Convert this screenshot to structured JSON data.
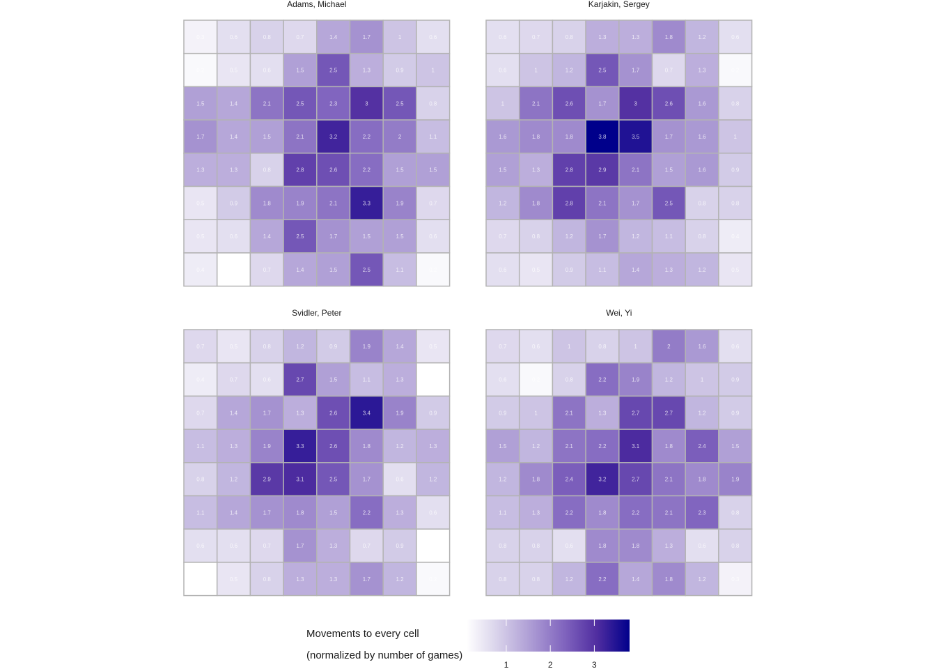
{
  "chart_data": {
    "type": "heatmap",
    "color_low": "#ffffff",
    "color_high": "#00008b",
    "cell_border": "#b3b3b3",
    "legend": {
      "title_line1": "Movements to every cell",
      "title_line2": "(normalized by number of games)",
      "ticks": [
        1,
        2,
        3
      ],
      "range": [
        0.1,
        3.8
      ],
      "placement": "bottom"
    },
    "panels": [
      {
        "title": "Adams, Michael",
        "values": [
          [
            0.3,
            0.6,
            0.8,
            0.7,
            1.4,
            1.7,
            1.0,
            0.6
          ],
          [
            0.2,
            0.5,
            0.6,
            1.5,
            2.5,
            1.3,
            0.9,
            1.0
          ],
          [
            1.5,
            1.4,
            2.1,
            2.5,
            2.3,
            3.0,
            2.5,
            0.8
          ],
          [
            1.7,
            1.4,
            1.5,
            2.1,
            3.2,
            2.2,
            2.0,
            1.1
          ],
          [
            1.3,
            1.3,
            0.8,
            2.8,
            2.6,
            2.2,
            1.5,
            1.5
          ],
          [
            0.5,
            0.9,
            1.8,
            1.9,
            2.1,
            3.3,
            1.9,
            0.7
          ],
          [
            0.5,
            0.6,
            1.4,
            2.5,
            1.7,
            1.5,
            1.5,
            0.6
          ],
          [
            0.4,
            0.1,
            0.7,
            1.4,
            1.5,
            2.5,
            1.1,
            0.2
          ]
        ]
      },
      {
        "title": "Karjakin, Sergey",
        "values": [
          [
            0.6,
            0.7,
            0.8,
            1.3,
            1.3,
            1.8,
            1.2,
            0.6
          ],
          [
            0.6,
            1.0,
            1.2,
            2.5,
            1.7,
            0.7,
            1.3,
            0.2
          ],
          [
            1.0,
            2.1,
            2.6,
            1.7,
            3.0,
            2.6,
            1.6,
            0.8
          ],
          [
            1.6,
            1.8,
            1.8,
            3.8,
            3.5,
            1.7,
            1.6,
            1.0
          ],
          [
            1.5,
            1.3,
            2.8,
            2.9,
            2.1,
            1.5,
            1.6,
            0.9
          ],
          [
            1.2,
            1.8,
            2.8,
            2.1,
            1.7,
            2.5,
            0.8,
            0.8
          ],
          [
            0.7,
            0.8,
            1.2,
            1.7,
            1.2,
            1.1,
            0.8,
            0.4
          ],
          [
            0.6,
            0.5,
            0.9,
            1.1,
            1.4,
            1.3,
            1.2,
            0.5
          ]
        ]
      },
      {
        "title": "Svidler, Peter",
        "values": [
          [
            0.7,
            0.5,
            0.8,
            1.2,
            0.9,
            1.9,
            1.4,
            0.5
          ],
          [
            0.4,
            0.7,
            0.6,
            2.7,
            1.5,
            1.1,
            1.3,
            0.1
          ],
          [
            0.7,
            1.4,
            1.7,
            1.3,
            2.6,
            3.4,
            1.9,
            0.9
          ],
          [
            1.1,
            1.3,
            1.9,
            3.3,
            2.6,
            1.8,
            1.2,
            1.3
          ],
          [
            0.8,
            1.2,
            2.9,
            3.1,
            2.5,
            1.7,
            0.6,
            1.2
          ],
          [
            1.1,
            1.4,
            1.7,
            1.8,
            1.5,
            2.2,
            1.3,
            0.6
          ],
          [
            0.6,
            0.6,
            0.7,
            1.7,
            1.3,
            0.7,
            0.9,
            0.1
          ],
          [
            0.1,
            0.5,
            0.8,
            1.3,
            1.3,
            1.7,
            1.2,
            0.2
          ]
        ]
      },
      {
        "title": "Wei, Yi",
        "values": [
          [
            0.7,
            0.6,
            1.0,
            0.8,
            1.0,
            2.0,
            1.6,
            0.6
          ],
          [
            0.6,
            0.2,
            0.8,
            2.2,
            1.9,
            1.2,
            1.0,
            0.9
          ],
          [
            0.9,
            1.0,
            2.1,
            1.3,
            2.7,
            2.7,
            1.2,
            0.9
          ],
          [
            1.5,
            1.2,
            2.1,
            2.2,
            3.1,
            1.8,
            2.4,
            1.5
          ],
          [
            1.2,
            1.8,
            2.4,
            3.2,
            2.7,
            2.1,
            1.8,
            1.9
          ],
          [
            1.1,
            1.3,
            2.2,
            1.8,
            2.2,
            2.1,
            2.3,
            0.8
          ],
          [
            0.8,
            0.8,
            0.6,
            1.8,
            1.8,
            1.3,
            0.6,
            0.8
          ],
          [
            0.8,
            0.8,
            1.2,
            2.2,
            1.4,
            1.8,
            1.2,
            0.3
          ]
        ]
      }
    ]
  }
}
